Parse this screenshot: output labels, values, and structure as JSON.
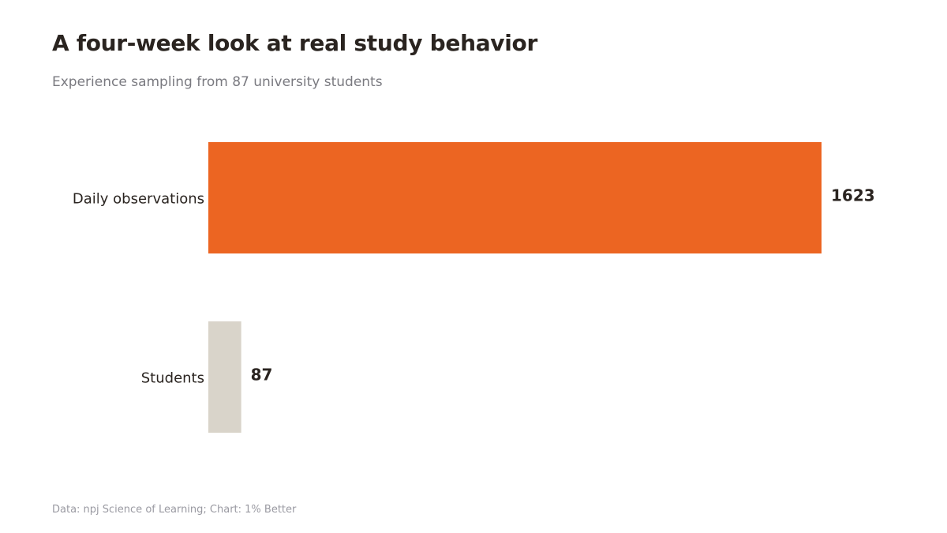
{
  "title": "A four-week look at real study behavior",
  "subtitle": "Experience sampling from 87 university students",
  "source": "Data: npj Science of Learning; Chart: 1% Better",
  "colors": {
    "highlight": "#ec6522",
    "muted": "#d9d4ca"
  },
  "chart_data": {
    "type": "bar",
    "orientation": "horizontal",
    "categories": [
      "Daily observations",
      "Students"
    ],
    "values": [
      1623,
      87
    ],
    "value_labels": [
      "1623",
      "87"
    ],
    "bar_colors": [
      "#ec6522",
      "#d9d4ca"
    ],
    "xlim": [
      0,
      1623
    ],
    "grid": false,
    "legend": "none"
  }
}
